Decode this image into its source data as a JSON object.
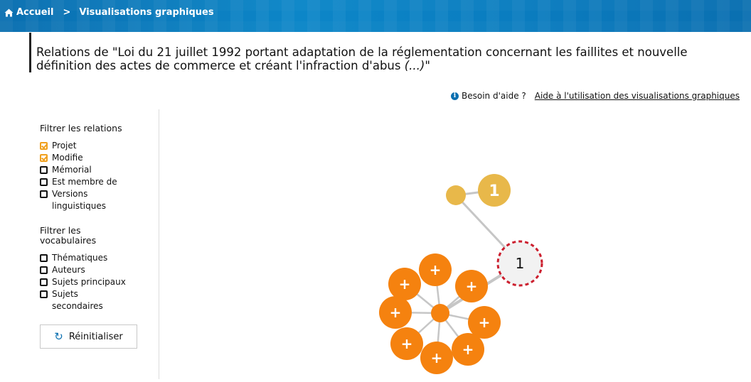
{
  "breadcrumb": {
    "home_label": "Accueil",
    "separator": ">",
    "current_label": "Visualisations graphiques"
  },
  "title": {
    "text": "Relations de \"Loi du 21 juillet 1992 portant adaptation de la réglementation concernant les faillites et nouvelle définition des actes de commerce et créant l'infraction d'abus ",
    "ellipsis": "(...)",
    "close": "\""
  },
  "help": {
    "icon": "info-icon",
    "label": "Besoin d'aide ?",
    "link": "Aide à l'utilisation des visualisations graphiques"
  },
  "filters": {
    "relations_title": "Filtrer les relations",
    "relations": [
      {
        "label": "Projet",
        "checked": true
      },
      {
        "label": "Modifie",
        "checked": true
      },
      {
        "label": "Mémorial",
        "checked": false
      },
      {
        "label": "Est membre de",
        "checked": false
      },
      {
        "label": "Versions linguistiques",
        "checked": false
      }
    ],
    "vocab_title": "Filtrer les vocabulaires",
    "vocab": [
      {
        "label": "Thématiques",
        "checked": false
      },
      {
        "label": "Auteurs",
        "checked": false
      },
      {
        "label": "Sujets principaux",
        "checked": false
      },
      {
        "label": "Sujets secondaires",
        "checked": false
      }
    ],
    "reset_label": "Réinitialiser"
  },
  "graph": {
    "colors": {
      "projet": "#e8b84a",
      "modifie": "#f5820f",
      "center": "#f2f2f2",
      "center_border": "#cc1f2e",
      "link": "#c6c6c6"
    },
    "center_label": "1",
    "projet_count_label": "1",
    "expand_label": "+"
  }
}
